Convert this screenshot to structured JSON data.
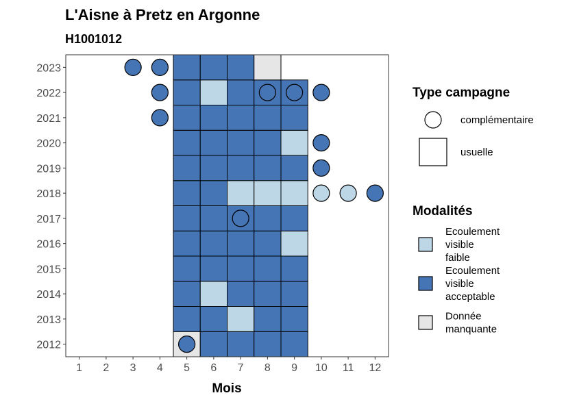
{
  "chart_data": {
    "type": "heatmap",
    "title": "L'Aisne à Pretz en Argonne",
    "subtitle": "H1001012",
    "xlabel": "Mois",
    "ylabel": "",
    "x_ticks": [
      "1",
      "2",
      "3",
      "4",
      "5",
      "6",
      "7",
      "8",
      "9",
      "10",
      "11",
      "12"
    ],
    "y_ticks": [
      "2012",
      "2013",
      "2014",
      "2015",
      "2016",
      "2017",
      "2018",
      "2019",
      "2020",
      "2021",
      "2022",
      "2023"
    ],
    "xlim": [
      0.5,
      12.5
    ],
    "ylim": [
      2011.5,
      2023.5
    ],
    "grid": false,
    "colors": {
      "faible": "#bdd7e7",
      "acceptable": "#4575b4",
      "manquante": "#e6e6e6"
    },
    "usuelle": [
      {
        "year": 2012,
        "month": 5,
        "mod": "manquante"
      },
      {
        "year": 2012,
        "month": 6,
        "mod": "acceptable"
      },
      {
        "year": 2012,
        "month": 7,
        "mod": "acceptable"
      },
      {
        "year": 2012,
        "month": 8,
        "mod": "acceptable"
      },
      {
        "year": 2012,
        "month": 9,
        "mod": "acceptable"
      },
      {
        "year": 2013,
        "month": 5,
        "mod": "acceptable"
      },
      {
        "year": 2013,
        "month": 6,
        "mod": "acceptable"
      },
      {
        "year": 2013,
        "month": 7,
        "mod": "faible"
      },
      {
        "year": 2013,
        "month": 8,
        "mod": "acceptable"
      },
      {
        "year": 2013,
        "month": 9,
        "mod": "acceptable"
      },
      {
        "year": 2014,
        "month": 5,
        "mod": "acceptable"
      },
      {
        "year": 2014,
        "month": 6,
        "mod": "faible"
      },
      {
        "year": 2014,
        "month": 7,
        "mod": "acceptable"
      },
      {
        "year": 2014,
        "month": 8,
        "mod": "acceptable"
      },
      {
        "year": 2014,
        "month": 9,
        "mod": "acceptable"
      },
      {
        "year": 2015,
        "month": 5,
        "mod": "acceptable"
      },
      {
        "year": 2015,
        "month": 6,
        "mod": "acceptable"
      },
      {
        "year": 2015,
        "month": 7,
        "mod": "acceptable"
      },
      {
        "year": 2015,
        "month": 8,
        "mod": "acceptable"
      },
      {
        "year": 2015,
        "month": 9,
        "mod": "acceptable"
      },
      {
        "year": 2016,
        "month": 5,
        "mod": "acceptable"
      },
      {
        "year": 2016,
        "month": 6,
        "mod": "acceptable"
      },
      {
        "year": 2016,
        "month": 7,
        "mod": "acceptable"
      },
      {
        "year": 2016,
        "month": 8,
        "mod": "acceptable"
      },
      {
        "year": 2016,
        "month": 9,
        "mod": "faible"
      },
      {
        "year": 2017,
        "month": 5,
        "mod": "acceptable"
      },
      {
        "year": 2017,
        "month": 6,
        "mod": "acceptable"
      },
      {
        "year": 2017,
        "month": 7,
        "mod": "acceptable"
      },
      {
        "year": 2017,
        "month": 8,
        "mod": "acceptable"
      },
      {
        "year": 2017,
        "month": 9,
        "mod": "acceptable"
      },
      {
        "year": 2018,
        "month": 5,
        "mod": "acceptable"
      },
      {
        "year": 2018,
        "month": 6,
        "mod": "acceptable"
      },
      {
        "year": 2018,
        "month": 7,
        "mod": "faible"
      },
      {
        "year": 2018,
        "month": 8,
        "mod": "faible"
      },
      {
        "year": 2018,
        "month": 9,
        "mod": "faible"
      },
      {
        "year": 2019,
        "month": 5,
        "mod": "acceptable"
      },
      {
        "year": 2019,
        "month": 6,
        "mod": "acceptable"
      },
      {
        "year": 2019,
        "month": 7,
        "mod": "acceptable"
      },
      {
        "year": 2019,
        "month": 8,
        "mod": "acceptable"
      },
      {
        "year": 2019,
        "month": 9,
        "mod": "acceptable"
      },
      {
        "year": 2020,
        "month": 5,
        "mod": "acceptable"
      },
      {
        "year": 2020,
        "month": 6,
        "mod": "acceptable"
      },
      {
        "year": 2020,
        "month": 7,
        "mod": "acceptable"
      },
      {
        "year": 2020,
        "month": 8,
        "mod": "acceptable"
      },
      {
        "year": 2020,
        "month": 9,
        "mod": "faible"
      },
      {
        "year": 2021,
        "month": 5,
        "mod": "acceptable"
      },
      {
        "year": 2021,
        "month": 6,
        "mod": "acceptable"
      },
      {
        "year": 2021,
        "month": 7,
        "mod": "acceptable"
      },
      {
        "year": 2021,
        "month": 8,
        "mod": "acceptable"
      },
      {
        "year": 2021,
        "month": 9,
        "mod": "acceptable"
      },
      {
        "year": 2022,
        "month": 5,
        "mod": "acceptable"
      },
      {
        "year": 2022,
        "month": 6,
        "mod": "faible"
      },
      {
        "year": 2022,
        "month": 7,
        "mod": "acceptable"
      },
      {
        "year": 2022,
        "month": 8,
        "mod": "acceptable"
      },
      {
        "year": 2022,
        "month": 9,
        "mod": "acceptable"
      },
      {
        "year": 2023,
        "month": 5,
        "mod": "acceptable"
      },
      {
        "year": 2023,
        "month": 6,
        "mod": "acceptable"
      },
      {
        "year": 2023,
        "month": 7,
        "mod": "acceptable"
      },
      {
        "year": 2023,
        "month": 8,
        "mod": "manquante"
      }
    ],
    "complementaire": [
      {
        "year": 2012,
        "month": 5,
        "mod": "acceptable"
      },
      {
        "year": 2017,
        "month": 7,
        "mod": "acceptable"
      },
      {
        "year": 2018,
        "month": 10,
        "mod": "faible"
      },
      {
        "year": 2018,
        "month": 11,
        "mod": "faible"
      },
      {
        "year": 2018,
        "month": 12,
        "mod": "acceptable"
      },
      {
        "year": 2019,
        "month": 10,
        "mod": "acceptable"
      },
      {
        "year": 2020,
        "month": 10,
        "mod": "acceptable"
      },
      {
        "year": 2021,
        "month": 4,
        "mod": "acceptable"
      },
      {
        "year": 2022,
        "month": 4,
        "mod": "acceptable"
      },
      {
        "year": 2022,
        "month": 8,
        "mod": "acceptable"
      },
      {
        "year": 2022,
        "month": 9,
        "mod": "acceptable"
      },
      {
        "year": 2022,
        "month": 10,
        "mod": "acceptable"
      },
      {
        "year": 2023,
        "month": 3,
        "mod": "acceptable"
      },
      {
        "year": 2023,
        "month": 4,
        "mod": "acceptable"
      }
    ],
    "legend": {
      "position": "right",
      "type_title": "Type campagne",
      "type_items": [
        {
          "key": "complementaire",
          "label": "complémentaire"
        },
        {
          "key": "usuelle",
          "label": "usuelle"
        }
      ],
      "mod_title": "Modalités",
      "mod_items": [
        {
          "key": "faible",
          "lines": [
            "Ecoulement",
            "visible",
            "faible"
          ]
        },
        {
          "key": "acceptable",
          "lines": [
            "Ecoulement",
            "visible",
            "acceptable"
          ]
        },
        {
          "key": "manquante",
          "lines": [
            "Donnée",
            "manquante"
          ]
        }
      ]
    }
  }
}
